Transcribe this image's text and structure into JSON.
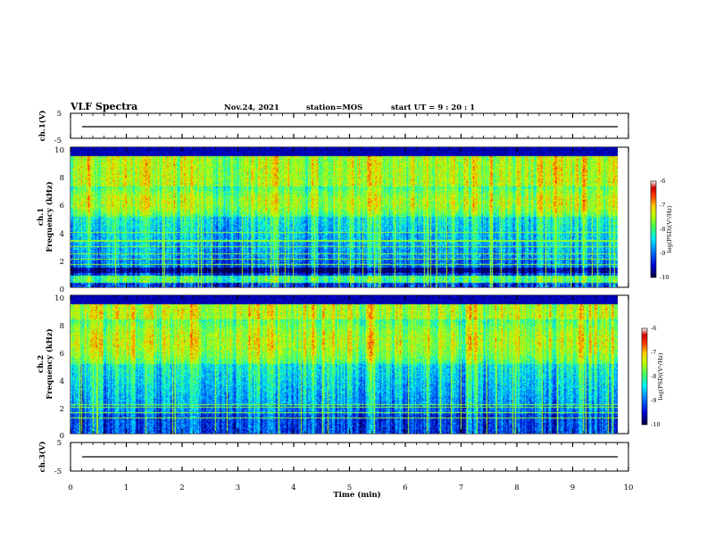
{
  "header": {
    "title": "VLF Spectra",
    "date": "Nov.24, 2021",
    "station": "station=MOS",
    "start": "start UT =  9 : 20 : 1"
  },
  "colorbar": {
    "label": "log(PSD)(V²/Hz)",
    "ticks": [
      "-6",
      "-7",
      "-8",
      "-9",
      "-10"
    ]
  },
  "colors": {
    "map": [
      "#000040",
      "#0000c0",
      "#0070ff",
      "#00e0ff",
      "#30ff70",
      "#b0ff00",
      "#ffd000",
      "#ff5000",
      "#e00000",
      "#ffffff"
    ]
  },
  "chart_data": [
    {
      "type": "line",
      "title": "VLF Spectra",
      "ylabel": "ch.1(V)",
      "x_range": [
        0,
        10
      ],
      "ylim": [
        -5,
        5
      ],
      "yticks": [
        "5",
        "-5"
      ],
      "series": [
        {
          "values": [
            -1.2
          ]
        }
      ]
    },
    {
      "type": "heatmap",
      "ylabel_line1": "ch.1",
      "ylabel_line2": "Frequency (kHz)",
      "x_range": [
        0,
        9.8
      ],
      "ylim": [
        0,
        10
      ],
      "yticks": [
        "10",
        "8",
        "6",
        "4",
        "2",
        "0"
      ],
      "colorbar_range": [
        -10,
        -6
      ],
      "intense_band_khz": [
        5,
        9.2
      ],
      "band_gap_khz": [
        1,
        1.4
      ],
      "low_band_khz": [
        0.3,
        0.8
      ]
    },
    {
      "type": "heatmap",
      "ylabel_line1": "ch.2",
      "ylabel_line2": "Frequency (kHz)",
      "x_range": [
        0,
        9.8
      ],
      "ylim": [
        0,
        10
      ],
      "yticks": [
        "10",
        "8",
        "6",
        "4",
        "2",
        "0"
      ],
      "colorbar_range": [
        -10,
        -6
      ],
      "intense_band_khz": [
        5,
        8
      ]
    },
    {
      "type": "line",
      "ylabel": "ch.3(V)",
      "xlabel": "Time (min)",
      "x_range": [
        0,
        10
      ],
      "xticks": [
        "0",
        "1",
        "2",
        "3",
        "4",
        "5",
        "6",
        "7",
        "8",
        "9",
        "10"
      ],
      "ylim": [
        -5,
        5
      ],
      "yticks": [
        "5",
        "-5"
      ],
      "series": [
        {
          "values": [
            -1.2
          ]
        }
      ]
    }
  ]
}
